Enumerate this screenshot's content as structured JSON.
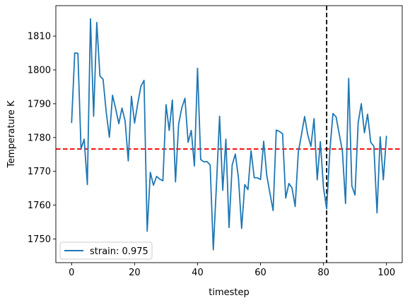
{
  "chart_data": {
    "type": "line",
    "title": "",
    "xlabel": "timestep",
    "ylabel": "Temperature K",
    "xlim": [
      -5,
      105
    ],
    "ylim": [
      1743,
      1819
    ],
    "xticks": [
      0,
      20,
      40,
      60,
      80,
      100
    ],
    "yticks": [
      1750,
      1760,
      1770,
      1780,
      1790,
      1800,
      1810
    ],
    "grid": false,
    "legend": {
      "location": "lower-left"
    },
    "hline": {
      "y": 1776.6,
      "color": "#ff0000",
      "style": "dashed"
    },
    "vline": {
      "x": 81,
      "color": "#000000",
      "style": "dashed"
    },
    "series": [
      {
        "name": "strain: 0.975",
        "color": "#1f77b4",
        "x": [
          0,
          1,
          2,
          3,
          4,
          5,
          6,
          7,
          8,
          9,
          10,
          11,
          12,
          13,
          14,
          15,
          16,
          17,
          18,
          19,
          20,
          21,
          22,
          23,
          24,
          25,
          26,
          27,
          28,
          29,
          30,
          31,
          32,
          33,
          34,
          35,
          36,
          37,
          38,
          39,
          40,
          41,
          42,
          43,
          44,
          45,
          46,
          47,
          48,
          49,
          50,
          51,
          52,
          53,
          54,
          55,
          56,
          57,
          58,
          59,
          60,
          61,
          62,
          63,
          64,
          65,
          66,
          67,
          68,
          69,
          70,
          71,
          72,
          73,
          74,
          75,
          76,
          77,
          78,
          79,
          80,
          81,
          82,
          83,
          84,
          85,
          86,
          87,
          88,
          89,
          90,
          91,
          92,
          93,
          94,
          95,
          96,
          97,
          98,
          99,
          100
        ],
        "y": [
          1784.3,
          1805.0,
          1804.9,
          1776.7,
          1779.5,
          1766.1,
          1815.1,
          1786.3,
          1814.0,
          1798.2,
          1797.2,
          1787.5,
          1780.1,
          1792.5,
          1788.5,
          1784.1,
          1788.7,
          1784.9,
          1773.1,
          1792.2,
          1784.3,
          1790.0,
          1795.1,
          1796.9,
          1752.3,
          1769.7,
          1765.9,
          1768.5,
          1767.7,
          1767.2,
          1789.7,
          1782.1,
          1791.1,
          1766.9,
          1784.0,
          1788.8,
          1791.6,
          1778.6,
          1782.1,
          1771.6,
          1800.5,
          1773.5,
          1772.8,
          1772.9,
          1771.9,
          1746.8,
          1765.9,
          1786.3,
          1764.4,
          1779.5,
          1753.4,
          1771.9,
          1775.1,
          1768.0,
          1753.1,
          1766.1,
          1764.6,
          1776.1,
          1768.1,
          1768.1,
          1767.6,
          1778.9,
          1768.7,
          1763.5,
          1758.4,
          1782.2,
          1781.8,
          1781.1,
          1762.1,
          1766.4,
          1765.1,
          1759.6,
          1775.7,
          1780.8,
          1786.2,
          1780.8,
          1777.4,
          1785.6,
          1767.5,
          1778.8,
          1765.1,
          1758.9,
          1775.9,
          1787.1,
          1786.1,
          1781.0,
          1776.0,
          1760.5,
          1797.5,
          1765.7,
          1763.0,
          1784.3,
          1790.0,
          1781.4,
          1786.9,
          1778.6,
          1777.4,
          1757.7,
          1780.2,
          1767.5,
          1780.5
        ]
      }
    ]
  }
}
